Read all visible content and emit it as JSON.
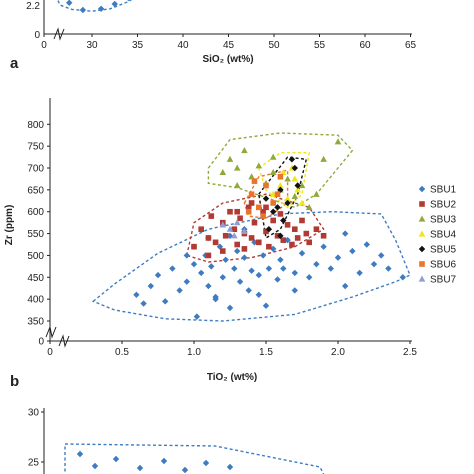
{
  "chart_data": [
    {
      "type": "scatter",
      "panel": "a",
      "xlabel": "SiO₂ (wt%)",
      "ylabel": "",
      "xticks": [
        "0",
        "30",
        "35",
        "40",
        "45",
        "50",
        "55",
        "60",
        "65"
      ],
      "yticks": [
        "2.2",
        "0"
      ],
      "xlim": [
        25,
        65
      ],
      "axis_break": true,
      "series": [
        {
          "name": "SBU1",
          "color": "#3e7cc2",
          "marker": "diamond",
          "points": [
            [
              27.5,
              2.6
            ],
            [
              29,
              2.0
            ],
            [
              31,
              2.1
            ],
            [
              32.5,
              2.5
            ],
            [
              34,
              3.0
            ]
          ]
        }
      ],
      "envelopes": [
        {
          "series": "SBU1",
          "color": "#3e7cc2",
          "points": [
            [
              26,
              3.2
            ],
            [
              26.5,
              2.4
            ],
            [
              27.8,
              2.05
            ],
            [
              30,
              1.9
            ],
            [
              32,
              2.1
            ],
            [
              34,
              2.7
            ],
            [
              35,
              3.2
            ]
          ]
        }
      ]
    },
    {
      "type": "scatter",
      "panel": "b",
      "xlabel": "TiO₂ (wt%)",
      "ylabel": "Zr (ppm)",
      "xticks": [
        "0",
        "0.5",
        "1.0",
        "1.5",
        "2.0",
        "2.5"
      ],
      "yticks": [
        "0",
        "350",
        "400",
        "450",
        "500",
        "550",
        "600",
        "650",
        "700",
        "750",
        "800"
      ],
      "xlim": [
        0.3,
        2.5
      ],
      "ylim": [
        325,
        800
      ],
      "axis_break": true,
      "legend": "right",
      "series": [
        {
          "name": "SBU1",
          "color": "#3e7cc2",
          "marker": "diamond",
          "points": [
            [
              0.6,
              410
            ],
            [
              0.65,
              390
            ],
            [
              0.7,
              430
            ],
            [
              0.75,
              455
            ],
            [
              0.8,
              395
            ],
            [
              0.85,
              470
            ],
            [
              0.9,
              420
            ],
            [
              0.95,
              440
            ],
            [
              1.0,
              480
            ],
            [
              1.02,
              360
            ],
            [
              1.05,
              460
            ],
            [
              1.08,
              500
            ],
            [
              1.1,
              430
            ],
            [
              1.12,
              475
            ],
            [
              1.15,
              405
            ],
            [
              1.18,
              520
            ],
            [
              1.2,
              450
            ],
            [
              1.22,
              490
            ],
            [
              1.25,
              380
            ],
            [
              1.28,
              470
            ],
            [
              1.3,
              510
            ],
            [
              1.32,
              440
            ],
            [
              1.35,
              495
            ],
            [
              1.38,
              420
            ],
            [
              1.4,
              465
            ],
            [
              1.42,
              530
            ],
            [
              1.45,
              455
            ],
            [
              1.48,
              500
            ],
            [
              1.5,
              385
            ],
            [
              1.52,
              470
            ],
            [
              1.55,
              515
            ],
            [
              1.58,
              445
            ],
            [
              1.6,
              490
            ],
            [
              1.62,
              470
            ],
            [
              1.65,
              535
            ],
            [
              1.7,
              460
            ],
            [
              1.75,
              505
            ],
            [
              1.8,
              450
            ],
            [
              1.85,
              480
            ],
            [
              1.9,
              520
            ],
            [
              1.95,
              470
            ],
            [
              2.0,
              495
            ],
            [
              2.05,
              430
            ],
            [
              2.1,
              510
            ],
            [
              2.15,
              460
            ],
            [
              2.2,
              525
            ],
            [
              2.25,
              480
            ],
            [
              2.3,
              500
            ],
            [
              2.35,
              470
            ],
            [
              2.45,
              450
            ],
            [
              1.1,
              540
            ],
            [
              1.0,
              520
            ],
            [
              1.25,
              545
            ],
            [
              1.15,
              400
            ],
            [
              0.95,
              500
            ],
            [
              1.35,
              560
            ],
            [
              1.7,
              420
            ],
            [
              2.05,
              550
            ],
            [
              1.45,
              410
            ]
          ]
        },
        {
          "name": "SBU2",
          "color": "#b23a34",
          "marker": "square",
          "points": [
            [
              1.0,
              520
            ],
            [
              1.05,
              560
            ],
            [
              1.1,
              540
            ],
            [
              1.12,
              590
            ],
            [
              1.15,
              530
            ],
            [
              1.2,
              575
            ],
            [
              1.22,
              545
            ],
            [
              1.25,
              600
            ],
            [
              1.28,
              560
            ],
            [
              1.3,
              525
            ],
            [
              1.32,
              585
            ],
            [
              1.35,
              550
            ],
            [
              1.38,
              610
            ],
            [
              1.4,
              540
            ],
            [
              1.42,
              575
            ],
            [
              1.45,
              530
            ],
            [
              1.48,
              600
            ],
            [
              1.5,
              555
            ],
            [
              1.52,
              520
            ],
            [
              1.55,
              580
            ],
            [
              1.58,
              545
            ],
            [
              1.6,
              595
            ],
            [
              1.62,
              535
            ],
            [
              1.65,
              570
            ],
            [
              1.68,
              525
            ],
            [
              1.7,
              560
            ],
            [
              1.72,
              540
            ],
            [
              1.75,
              580
            ],
            [
              1.78,
              550
            ],
            [
              1.8,
              530
            ],
            [
              1.85,
              560
            ],
            [
              1.9,
              545
            ],
            [
              1.2,
              510
            ],
            [
              1.3,
              600
            ],
            [
              1.4,
              620
            ],
            [
              1.5,
              610
            ],
            [
              1.1,
              500
            ],
            [
              1.35,
              515
            ]
          ]
        },
        {
          "name": "SBU3",
          "color": "#8faa3c",
          "marker": "triangle",
          "points": [
            [
              1.2,
              690
            ],
            [
              1.25,
              720
            ],
            [
              1.3,
              700
            ],
            [
              1.35,
              740
            ],
            [
              1.4,
              680
            ],
            [
              1.45,
              705
            ],
            [
              1.5,
              665
            ],
            [
              1.55,
              690
            ],
            [
              1.6,
              650
            ],
            [
              1.65,
              675
            ],
            [
              1.7,
              635
            ],
            [
              1.75,
              660
            ],
            [
              1.8,
              610
            ],
            [
              1.85,
              640
            ],
            [
              2.0,
              760
            ],
            [
              1.9,
              720
            ],
            [
              1.55,
              725
            ],
            [
              1.3,
              660
            ]
          ]
        },
        {
          "name": "SBU4",
          "color": "#f1e61b",
          "marker": "triangle",
          "points": [
            [
              1.55,
              640
            ],
            [
              1.6,
              660
            ],
            [
              1.65,
              630
            ],
            [
              1.7,
              675
            ],
            [
              1.72,
              650
            ],
            [
              1.68,
              700
            ],
            [
              1.75,
              620
            ],
            [
              1.62,
              690
            ]
          ]
        },
        {
          "name": "SBU5",
          "color": "#111111",
          "marker": "diamond",
          "points": [
            [
              1.5,
              630
            ],
            [
              1.55,
              600
            ],
            [
              1.6,
              650
            ],
            [
              1.62,
              580
            ],
            [
              1.65,
              620
            ],
            [
              1.7,
              700
            ],
            [
              1.72,
              660
            ],
            [
              1.68,
              720
            ],
            [
              1.58,
              610
            ],
            [
              1.52,
              560
            ],
            [
              1.6,
              545
            ]
          ]
        },
        {
          "name": "SBU6",
          "color": "#e9742a",
          "marker": "square",
          "points": [
            [
              1.4,
              640
            ],
            [
              1.45,
              610
            ],
            [
              1.5,
              660
            ],
            [
              1.55,
              620
            ],
            [
              1.6,
              680
            ],
            [
              1.38,
              600
            ],
            [
              1.48,
              590
            ],
            [
              1.58,
              640
            ],
            [
              1.42,
              670
            ]
          ]
        },
        {
          "name": "SBU7",
          "color": "#8f9ed4",
          "marker": "triangle",
          "points": [
            [
              1.2,
              570
            ],
            [
              1.25,
              560
            ],
            [
              1.3,
              575
            ],
            [
              1.35,
              555
            ],
            [
              1.28,
              545
            ]
          ]
        }
      ],
      "envelopes": [
        {
          "series": "SBU1",
          "color": "#3e7cc2",
          "points": [
            [
              0.3,
              395
            ],
            [
              0.45,
              435
            ],
            [
              0.75,
              505
            ],
            [
              1.1,
              560
            ],
            [
              1.6,
              595
            ],
            [
              1.95,
              600
            ],
            [
              2.3,
              595
            ],
            [
              2.4,
              535
            ],
            [
              2.5,
              455
            ],
            [
              2.4,
              440
            ],
            [
              2.1,
              405
            ],
            [
              1.7,
              365
            ],
            [
              1.2,
              350
            ],
            [
              0.8,
              355
            ],
            [
              0.45,
              375
            ]
          ]
        },
        {
          "series": "SBU2",
          "color": "#b23a34",
          "points": [
            [
              0.95,
              500
            ],
            [
              1.0,
              575
            ],
            [
              1.2,
              620
            ],
            [
              1.5,
              640
            ],
            [
              1.8,
              610
            ],
            [
              1.9,
              560
            ],
            [
              1.7,
              520
            ],
            [
              1.4,
              495
            ],
            [
              1.1,
              485
            ]
          ]
        },
        {
          "series": "SBU3",
          "color": "#8faa3c",
          "points": [
            [
              1.1,
              700
            ],
            [
              1.25,
              765
            ],
            [
              1.6,
              780
            ],
            [
              2.0,
              775
            ],
            [
              2.1,
              740
            ],
            [
              1.85,
              640
            ],
            [
              1.7,
              610
            ],
            [
              1.3,
              655
            ],
            [
              1.1,
              665
            ]
          ]
        },
        {
          "series": "SBU4",
          "color": "#f1e61b",
          "points": [
            [
              1.45,
              700
            ],
            [
              1.6,
              735
            ],
            [
              1.8,
              735
            ],
            [
              1.75,
              640
            ],
            [
              1.65,
              610
            ],
            [
              1.5,
              650
            ]
          ]
        },
        {
          "series": "SBU5",
          "color": "#111111",
          "points": [
            [
              1.45,
              640
            ],
            [
              1.65,
              725
            ],
            [
              1.78,
              720
            ],
            [
              1.72,
              640
            ],
            [
              1.6,
              560
            ],
            [
              1.5,
              540
            ]
          ]
        },
        {
          "series": "SBU6",
          "color": "#e9742a",
          "points": [
            [
              1.35,
              620
            ],
            [
              1.45,
              680
            ],
            [
              1.65,
              695
            ],
            [
              1.65,
              620
            ],
            [
              1.5,
              585
            ],
            [
              1.38,
              590
            ]
          ]
        }
      ]
    },
    {
      "type": "scatter",
      "panel": "c",
      "xlabel": "",
      "ylabel": "",
      "yticks": [
        "30",
        "25"
      ],
      "ylim": [
        21.5,
        30
      ],
      "series": [
        {
          "name": "SBU1",
          "color": "#3e7cc2",
          "marker": "diamond",
          "points": [
            [
              0.1,
              25.8
            ],
            [
              0.15,
              24.6
            ],
            [
              0.22,
              25.3
            ],
            [
              0.3,
              24.4
            ],
            [
              0.38,
              25.1
            ],
            [
              0.45,
              24.2
            ],
            [
              0.52,
              24.9
            ],
            [
              0.6,
              24.5
            ]
          ]
        }
      ],
      "envelopes": [
        {
          "series": "SBU1",
          "color": "#3e7cc2",
          "points": [
            [
              0.05,
              23.5
            ],
            [
              0.05,
              26.8
            ],
            [
              0.55,
              26.6
            ],
            [
              0.9,
              24.5
            ],
            [
              0.95,
              21.5
            ]
          ]
        }
      ]
    }
  ],
  "panel_labels": {
    "a": "a",
    "b": "b"
  }
}
